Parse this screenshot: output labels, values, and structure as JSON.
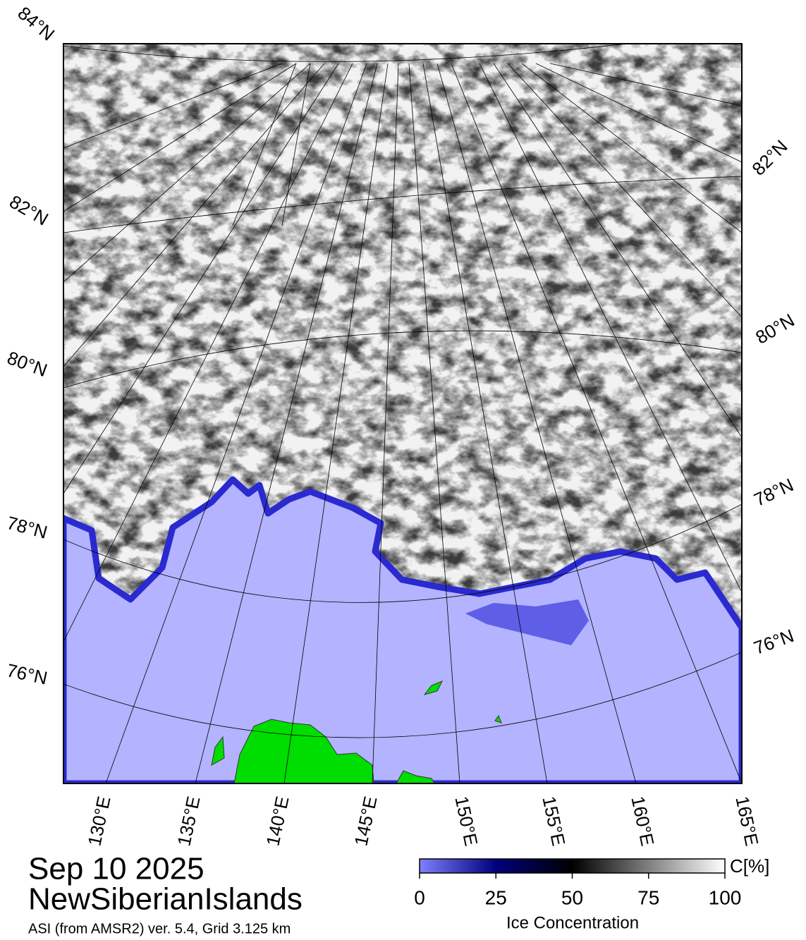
{
  "header": {
    "date": "Sep 10 2025",
    "region": "NewSiberianIslands",
    "source": "ASI (from AMSR2) ver. 5.4,  Grid 3.125 km"
  },
  "map": {
    "lat_labels_left": [
      "84°N",
      "82°N",
      "80°N",
      "78°N",
      "76°N"
    ],
    "lat_labels_right": [
      "82°N",
      "80°N",
      "78°N",
      "76°N"
    ],
    "lon_labels": [
      "130°E",
      "135°E",
      "140°E",
      "145°E",
      "150°E",
      "155°E",
      "160°E",
      "165°E"
    ]
  },
  "colorbar": {
    "label": "Ice Concentration",
    "unit": "C[%]",
    "lim": [
      0,
      100
    ],
    "ticks": [
      0,
      25,
      50,
      75,
      100
    ]
  }
}
